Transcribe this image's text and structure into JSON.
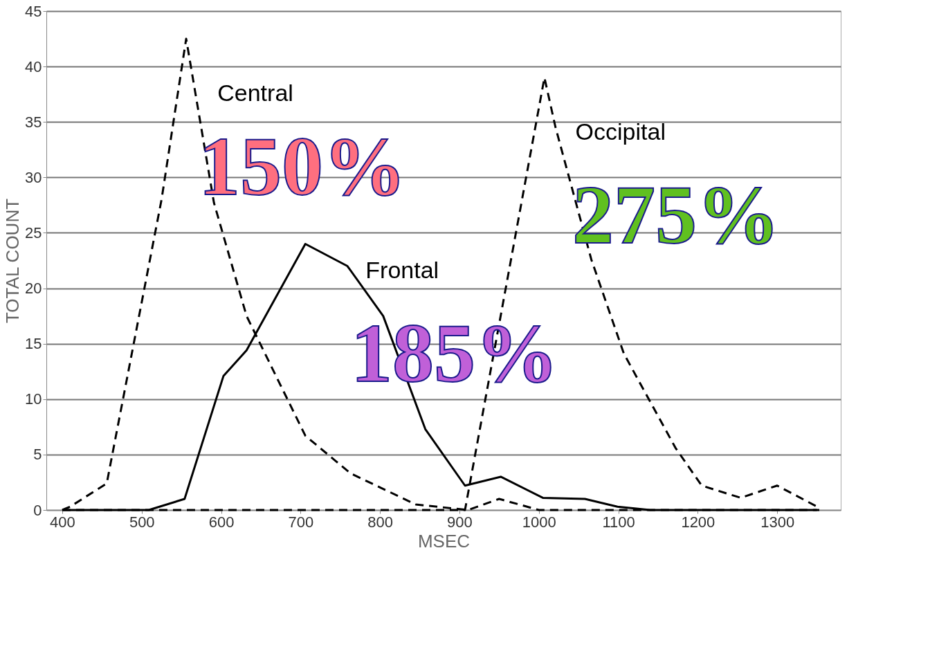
{
  "chart_data": {
    "type": "line",
    "xlabel": "MSEC",
    "ylabel": "TOTAL COUNT",
    "xlim": [
      380,
      1380
    ],
    "xticks": [
      400,
      500,
      600,
      700,
      800,
      900,
      1000,
      1100,
      1200,
      1300
    ],
    "ylim": [
      0,
      45
    ],
    "yticks": [
      0,
      5,
      10,
      15,
      20,
      25,
      30,
      35,
      40,
      45
    ],
    "grid": "y",
    "marker": "none",
    "series": [
      {
        "name": "Central",
        "color": "#000000",
        "line_style": "dashed",
        "x": [
          400,
          410,
          456,
          525,
          556,
          591,
          632,
          706,
          763,
          845,
          911,
          950,
          1000,
          1350
        ],
        "values": [
          0,
          0.3,
          2.4,
          28,
          42.5,
          27.7,
          17.5,
          6.7,
          3.3,
          0.5,
          0,
          1,
          0,
          0
        ]
      },
      {
        "name": "Frontal",
        "color": "#000000",
        "line_style": "solid",
        "x": [
          400,
          509,
          554,
          603,
          632,
          706,
          759,
          804,
          857,
          907,
          952,
          1005,
          1058,
          1099,
          1140,
          1353
        ],
        "values": [
          0,
          0,
          1,
          12.1,
          14.4,
          24,
          22,
          17.5,
          7.3,
          2.2,
          3,
          1.1,
          1,
          0.3,
          0,
          0
        ]
      },
      {
        "name": "Occipital",
        "color": "#000000",
        "line_style": "dashed",
        "x": [
          400,
          907,
          1007,
          1021,
          1066,
          1107,
          1172,
          1205,
          1254,
          1300,
          1353
        ],
        "values": [
          0,
          0,
          39,
          34.5,
          22.6,
          14.1,
          5.6,
          2.2,
          1.1,
          2.2,
          0.2
        ]
      }
    ],
    "annotations": [
      "150%",
      "185%",
      "275%"
    ]
  }
}
